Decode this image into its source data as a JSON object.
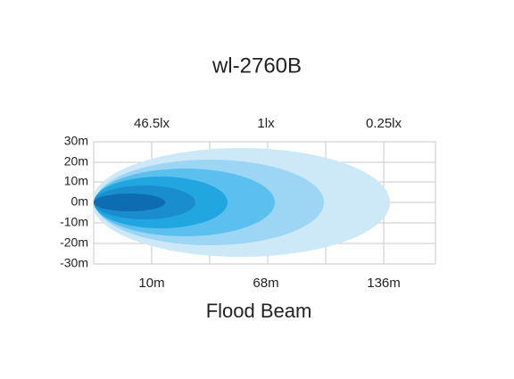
{
  "title": "wl-2760B",
  "lux_labels": [
    "46.5lx",
    "1lx",
    "0.25lx"
  ],
  "y_labels": [
    "30m",
    "20m",
    "10m",
    "0m",
    "-10m",
    "-20m",
    "-30m"
  ],
  "x_labels": [
    "10m",
    "68m",
    "136m"
  ],
  "caption": "Flood Beam"
}
